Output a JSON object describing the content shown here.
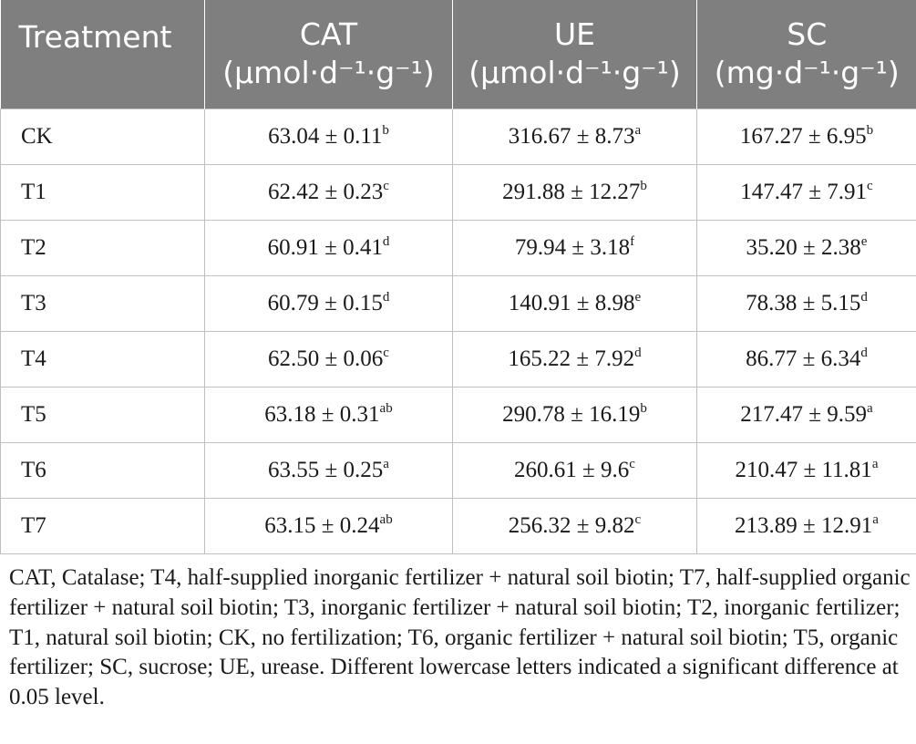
{
  "table": {
    "headers": [
      {
        "title": "Treatment",
        "unit": ""
      },
      {
        "title": "CAT",
        "unit": "(μmol·d⁻¹·g⁻¹)"
      },
      {
        "title": "UE",
        "unit": "(μmol·d⁻¹·g⁻¹)"
      },
      {
        "title": "SC",
        "unit": "(mg·d⁻¹·g⁻¹)"
      }
    ],
    "rows": [
      {
        "treatment": "CK",
        "cat": "63.04 ± 0.11",
        "cat_sig": "b",
        "ue": "316.67 ± 8.73",
        "ue_sig": "a",
        "sc": "167.27 ± 6.95",
        "sc_sig": "b"
      },
      {
        "treatment": "T1",
        "cat": "62.42 ± 0.23",
        "cat_sig": "c",
        "ue": "291.88 ± 12.27",
        "ue_sig": "b",
        "sc": "147.47 ± 7.91",
        "sc_sig": "c"
      },
      {
        "treatment": "T2",
        "cat": "60.91 ± 0.41",
        "cat_sig": "d",
        "ue": "79.94 ± 3.18",
        "ue_sig": "f",
        "sc": "35.20 ± 2.38",
        "sc_sig": "e"
      },
      {
        "treatment": "T3",
        "cat": "60.79 ± 0.15",
        "cat_sig": "d",
        "ue": "140.91 ± 8.98",
        "ue_sig": "e",
        "sc": "78.38 ± 5.15",
        "sc_sig": "d"
      },
      {
        "treatment": "T4",
        "cat": "62.50 ± 0.06",
        "cat_sig": "c",
        "ue": "165.22 ± 7.92",
        "ue_sig": "d",
        "sc": "86.77 ± 6.34",
        "sc_sig": "d"
      },
      {
        "treatment": "T5",
        "cat": "63.18 ± 0.31",
        "cat_sig": "ab",
        "ue": "290.78 ± 16.19",
        "ue_sig": "b",
        "sc": "217.47 ± 9.59",
        "sc_sig": "a"
      },
      {
        "treatment": "T6",
        "cat": "63.55 ± 0.25",
        "cat_sig": "a",
        "ue": "260.61 ± 9.6",
        "ue_sig": "c",
        "sc": "210.47 ± 11.81",
        "sc_sig": "a"
      },
      {
        "treatment": "T7",
        "cat": "63.15 ± 0.24",
        "cat_sig": "ab",
        "ue": "256.32 ± 9.82",
        "ue_sig": "c",
        "sc": "213.89 ± 12.91",
        "sc_sig": "a"
      }
    ]
  },
  "footnote": "CAT, Catalase; T4, half-supplied inorganic fertilizer + natural soil biotin; T7, half-supplied organic fertilizer + natural soil biotin; T3, inorganic fertilizer + natural soil biotin; T2, inorganic fertilizer; T1, natural soil biotin; CK, no fertilization; T6, organic fertilizer + natural soil biotin; T5, organic fertilizer; SC, sucrose; UE, urease. Different lowercase letters indicated a significant difference at 0.05 level.",
  "colors": {
    "header_bg": "#7f7f7f",
    "header_text": "#ffffff",
    "grid": "#bfbfbf"
  }
}
